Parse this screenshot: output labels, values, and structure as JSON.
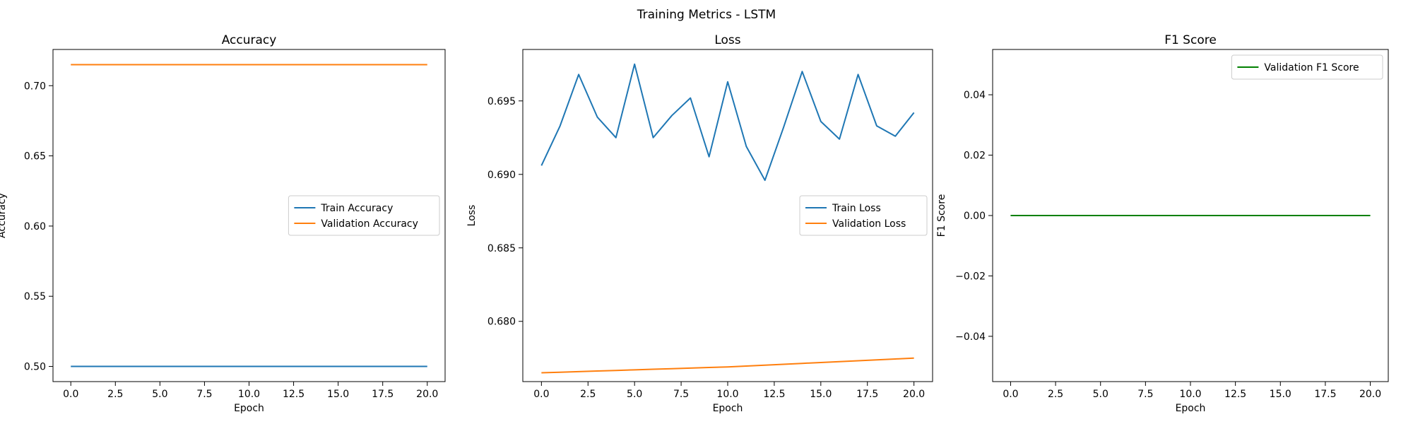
{
  "figure": {
    "title": "Training Metrics - LSTM"
  },
  "chart_data": [
    {
      "type": "line",
      "title": "Accuracy",
      "xlabel": "Epoch",
      "ylabel": "Accuracy",
      "xlim": [
        -1.0,
        21.0
      ],
      "ylim": [
        0.4892,
        0.7258
      ],
      "xticks": [
        0.0,
        2.5,
        5.0,
        7.5,
        10.0,
        12.5,
        15.0,
        17.5,
        20.0
      ],
      "xtick_labels": [
        "0.0",
        "2.5",
        "5.0",
        "7.5",
        "10.0",
        "12.5",
        "15.0",
        "17.5",
        "20.0"
      ],
      "yticks": [
        0.5,
        0.55,
        0.6,
        0.65,
        0.7
      ],
      "ytick_labels": [
        "0.50",
        "0.55",
        "0.60",
        "0.65",
        "0.70"
      ],
      "grid": false,
      "legend_loc": "center-right",
      "x": [
        0,
        1,
        2,
        3,
        4,
        5,
        6,
        7,
        8,
        9,
        10,
        11,
        12,
        13,
        14,
        15,
        16,
        17,
        18,
        19,
        20
      ],
      "series": [
        {
          "name": "Train Accuracy",
          "color": "#1f77b4",
          "values": [
            0.5,
            0.5,
            0.5,
            0.5,
            0.5,
            0.5,
            0.5,
            0.5,
            0.5,
            0.5,
            0.5,
            0.5,
            0.5,
            0.5,
            0.5,
            0.5,
            0.5,
            0.5,
            0.5,
            0.5,
            0.5
          ]
        },
        {
          "name": "Validation Accuracy",
          "color": "#ff7f0e",
          "values": [
            0.715,
            0.715,
            0.715,
            0.715,
            0.715,
            0.715,
            0.715,
            0.715,
            0.715,
            0.715,
            0.715,
            0.715,
            0.715,
            0.715,
            0.715,
            0.715,
            0.715,
            0.715,
            0.715,
            0.715,
            0.715
          ]
        }
      ]
    },
    {
      "type": "line",
      "title": "Loss",
      "xlabel": "Epoch",
      "ylabel": "Loss",
      "xlim": [
        -1.0,
        21.0
      ],
      "ylim": [
        0.6759,
        0.6985
      ],
      "xticks": [
        0.0,
        2.5,
        5.0,
        7.5,
        10.0,
        12.5,
        15.0,
        17.5,
        20.0
      ],
      "xtick_labels": [
        "0.0",
        "2.5",
        "5.0",
        "7.5",
        "10.0",
        "12.5",
        "15.0",
        "17.5",
        "20.0"
      ],
      "yticks": [
        0.68,
        0.685,
        0.69,
        0.695
      ],
      "ytick_labels": [
        "0.680",
        "0.685",
        "0.690",
        "0.695"
      ],
      "grid": false,
      "legend_loc": "center-right",
      "x": [
        0,
        1,
        2,
        3,
        4,
        5,
        6,
        7,
        8,
        9,
        10,
        11,
        12,
        13,
        14,
        15,
        16,
        17,
        18,
        19,
        20
      ],
      "series": [
        {
          "name": "Train Loss",
          "color": "#1f77b4",
          "values": [
            0.6906,
            0.6933,
            0.6968,
            0.6939,
            0.6925,
            0.6975,
            0.6925,
            0.694,
            0.6952,
            0.6912,
            0.6963,
            0.6919,
            0.6896,
            0.6932,
            0.697,
            0.6936,
            0.6924,
            0.6968,
            0.6933,
            0.6926,
            0.6942
          ]
        },
        {
          "name": "Validation Loss",
          "color": "#ff7f0e",
          "values": [
            0.6765,
            0.67654,
            0.67658,
            0.67662,
            0.67666,
            0.6767,
            0.67674,
            0.67678,
            0.67682,
            0.67686,
            0.6769,
            0.67696,
            0.67702,
            0.67708,
            0.67714,
            0.6772,
            0.67726,
            0.67732,
            0.67738,
            0.67744,
            0.6775
          ]
        }
      ]
    },
    {
      "type": "line",
      "title": "F1 Score",
      "xlabel": "Epoch",
      "ylabel": "F1 Score",
      "xlim": [
        -1.0,
        21.0
      ],
      "ylim": [
        -0.055,
        0.055
      ],
      "xticks": [
        0.0,
        2.5,
        5.0,
        7.5,
        10.0,
        12.5,
        15.0,
        17.5,
        20.0
      ],
      "xtick_labels": [
        "0.0",
        "2.5",
        "5.0",
        "7.5",
        "10.0",
        "12.5",
        "15.0",
        "17.5",
        "20.0"
      ],
      "yticks": [
        -0.04,
        -0.02,
        0.0,
        0.02,
        0.04
      ],
      "ytick_labels": [
        "−0.04",
        "−0.02",
        "0.00",
        "0.02",
        "0.04"
      ],
      "grid": false,
      "legend_loc": "top-right",
      "x": [
        0,
        1,
        2,
        3,
        4,
        5,
        6,
        7,
        8,
        9,
        10,
        11,
        12,
        13,
        14,
        15,
        16,
        17,
        18,
        19,
        20
      ],
      "series": [
        {
          "name": "Validation F1 Score",
          "color": "#008000",
          "values": [
            0,
            0,
            0,
            0,
            0,
            0,
            0,
            0,
            0,
            0,
            0,
            0,
            0,
            0,
            0,
            0,
            0,
            0,
            0,
            0,
            0
          ]
        }
      ]
    }
  ]
}
